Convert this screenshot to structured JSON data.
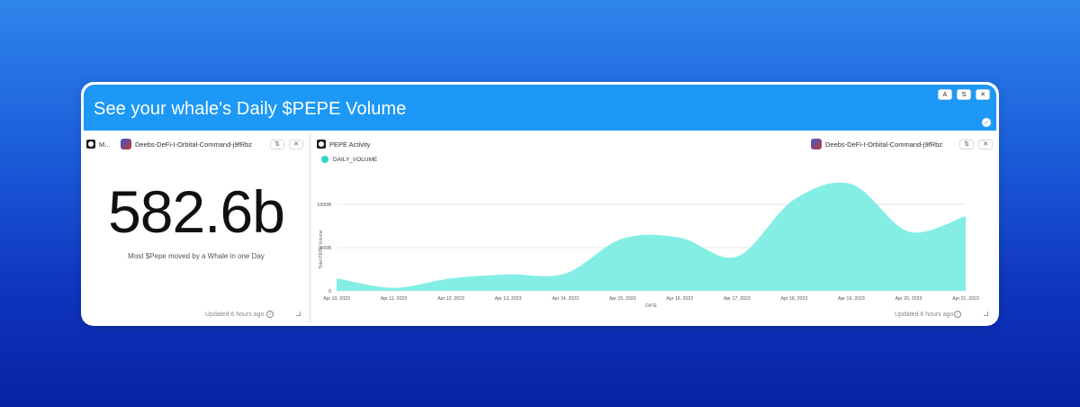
{
  "header": {
    "title": "See your whale's Daily $PEPE Volume",
    "buttons": [
      "A",
      "⇅",
      "✕"
    ]
  },
  "left_panel": {
    "title": "M...",
    "owner": "Deebs-DeFi-I-Orbital-Command-j9fRbz",
    "big_number": "582.6b",
    "caption": "Most $Pepe moved by a Whale in one Day",
    "updated": "Updated 6 hours ago"
  },
  "right_panel": {
    "title": "PEPE Activity",
    "owner": "Deebs-DeFi-I-Orbital-Command-j9fRbz",
    "legend_label": "DAILY_VOLUME",
    "updated": "Updated 6 hours ago"
  },
  "icons": {
    "expand": "⇅",
    "close": "✕",
    "check": "✓",
    "corner": "⌟"
  },
  "colors": {
    "accent": "#1d98f6",
    "series": "#2dd4c7",
    "series_fill": "#84eee5"
  },
  "chart_data": {
    "type": "area",
    "title": "",
    "xlabel": "DATE",
    "ylabel": "Total PEPE Volume",
    "x": [
      "Apr 10, 2023",
      "Apr 11, 2023",
      "Apr 12, 2023",
      "Apr 13, 2023",
      "Apr 14, 2023",
      "Apr 15, 2023",
      "Apr 16, 2023",
      "Apr 17, 2023",
      "Apr 18, 2023",
      "Apr 19, 2023",
      "Apr 20, 2023",
      "Apr 21, 2023"
    ],
    "yticks": [
      "0",
      "500B",
      "1000B"
    ],
    "ylim": [
      0,
      1000
    ],
    "series": [
      {
        "name": "DAILY_VOLUME",
        "values": [
          140,
          30,
          140,
          185,
          195,
          600,
          610,
          390,
          1050,
          1230,
          680,
          860
        ]
      }
    ],
    "grid": true,
    "legend": "top-left"
  }
}
